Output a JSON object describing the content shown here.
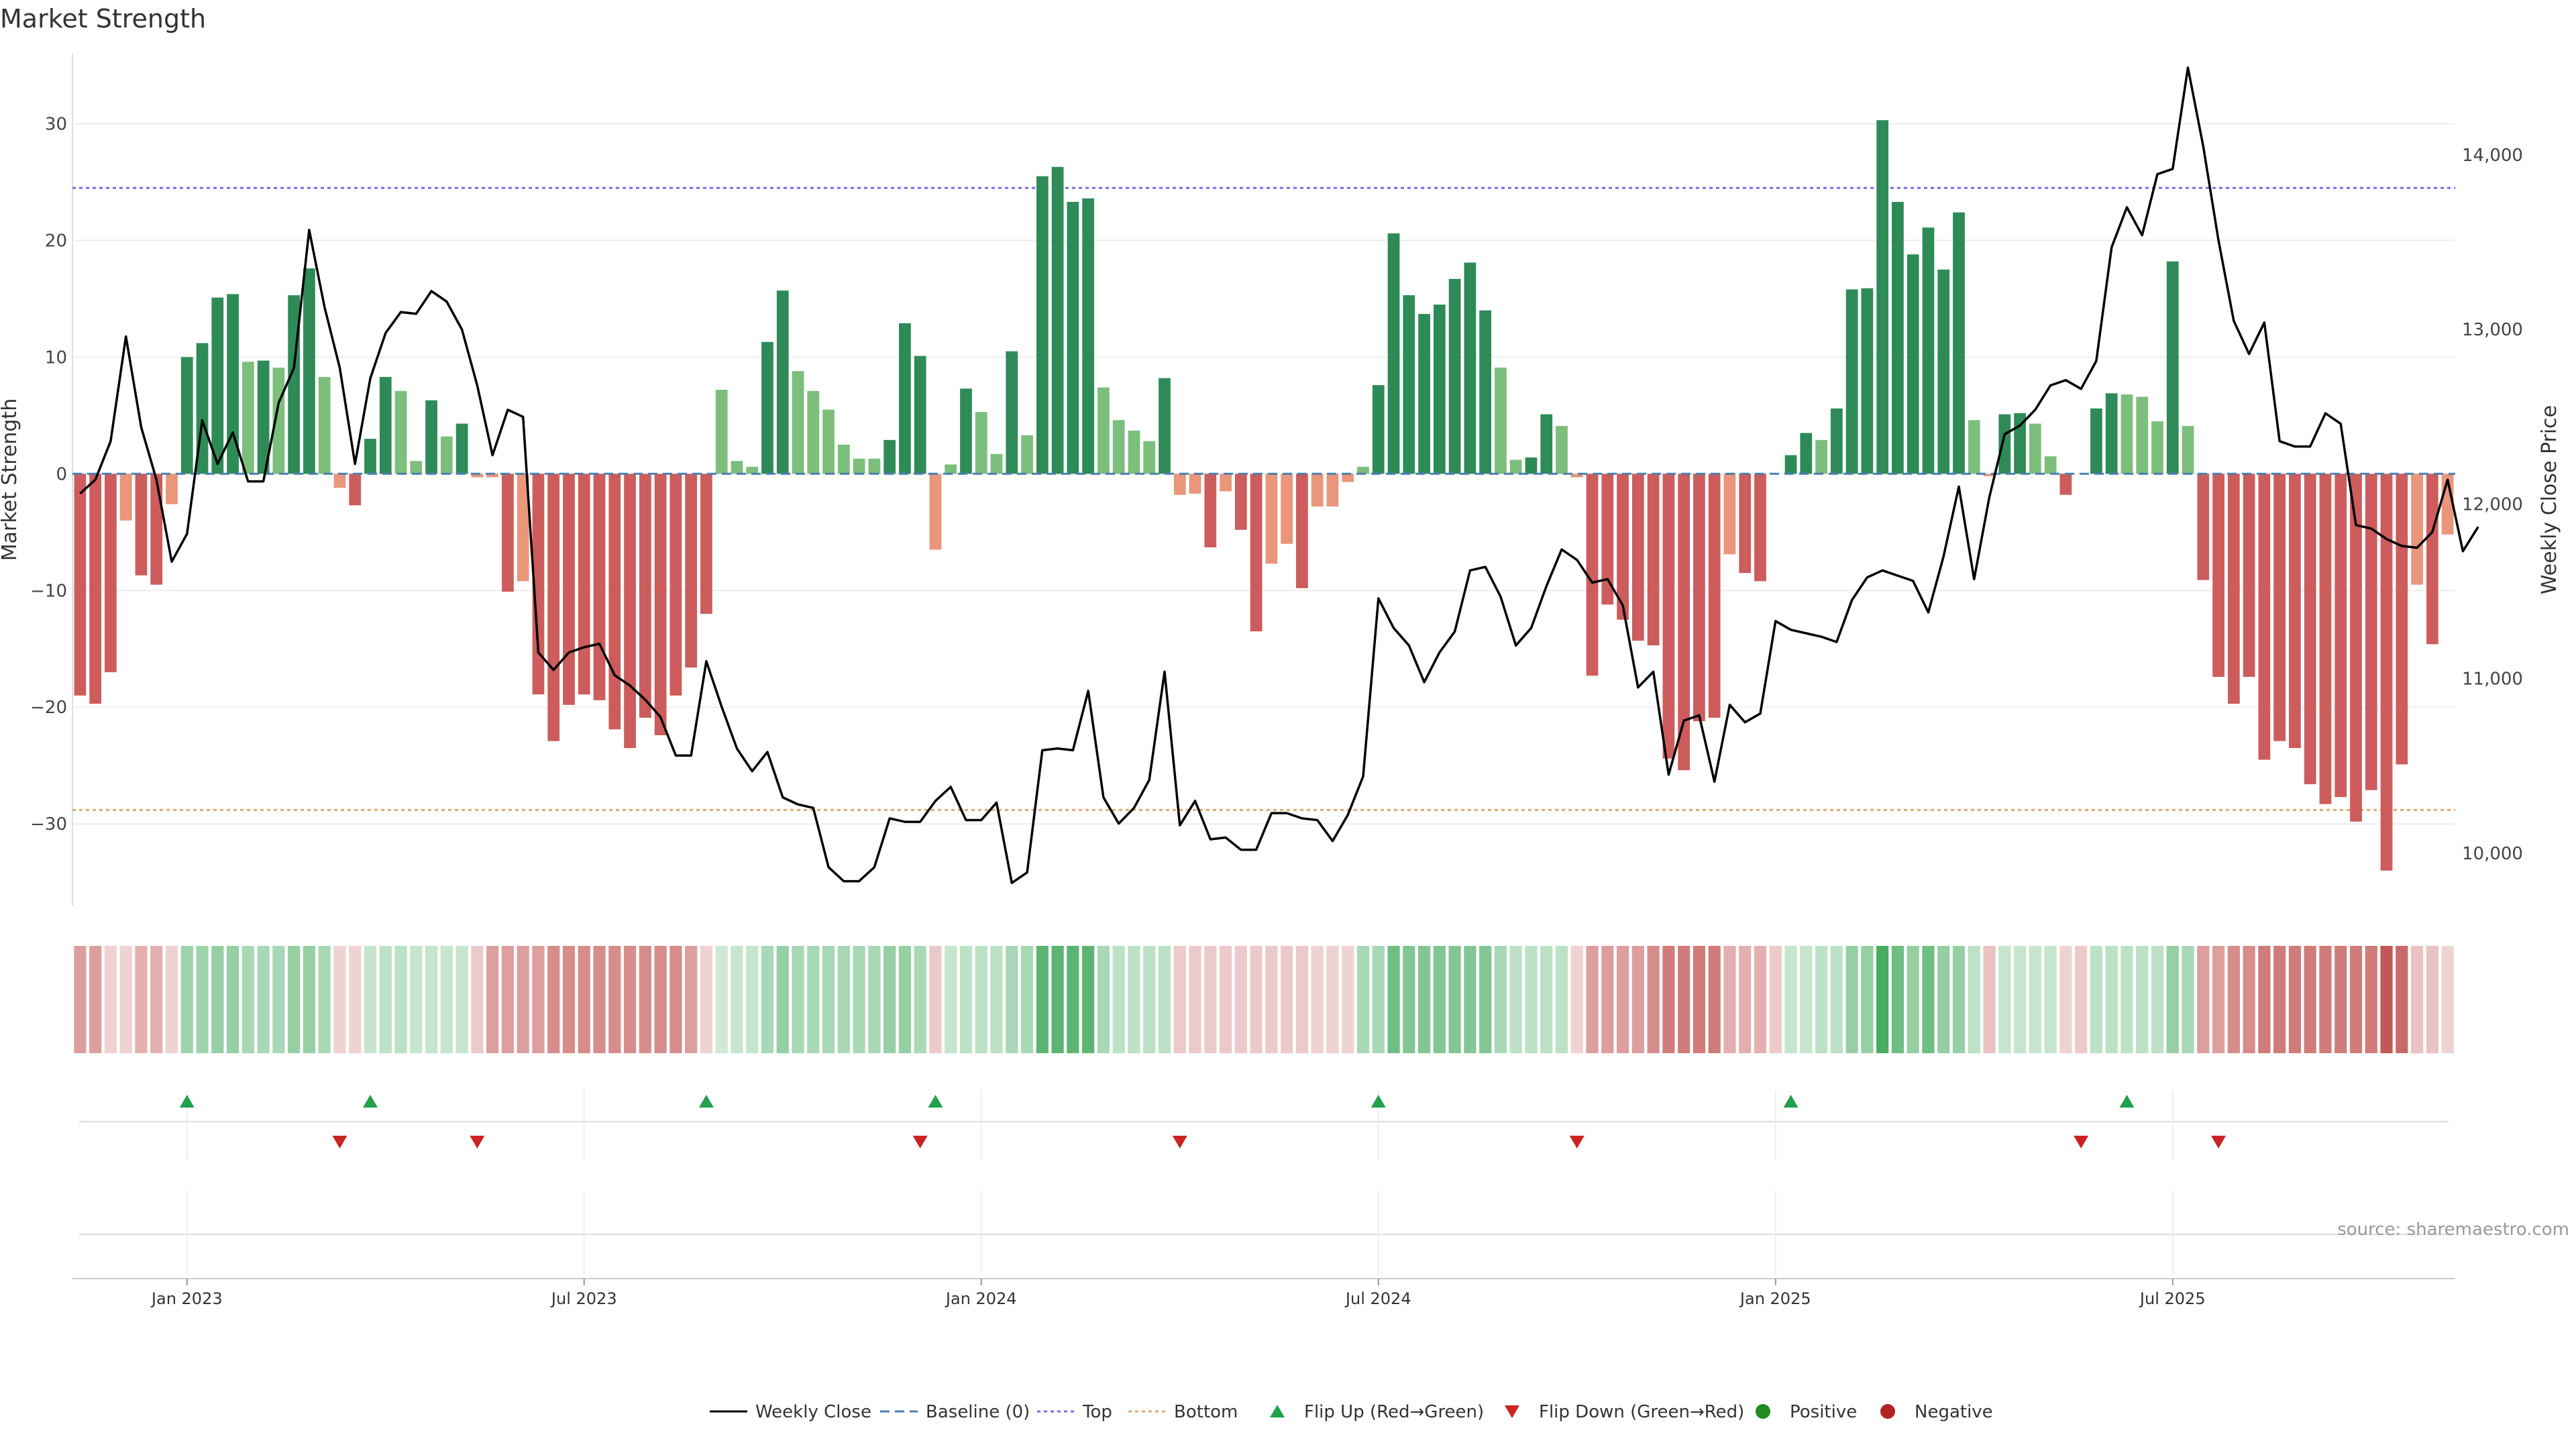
{
  "title": "Market Strength",
  "source": "source: sharemaestro.com",
  "chart_data": {
    "type": "bar",
    "title": "Market Strength",
    "ylabel_left": "Market Strength",
    "ylabel_right": "Weekly Close Price",
    "left_axis": {
      "range": [
        -37,
        36
      ],
      "ticks": [
        30,
        20,
        10,
        0,
        -10,
        -20,
        -30
      ]
    },
    "right_axis": {
      "range": [
        9700,
        14580
      ],
      "ticks": [
        14000,
        13000,
        12000,
        11000,
        10000
      ],
      "tick_labels": [
        "14,000",
        "13,000",
        "12,000",
        "11,000",
        "10,000"
      ]
    },
    "x_ticks": [
      "Jan 2023",
      "Jul 2023",
      "Jan 2024",
      "Jul 2024",
      "Jan 2025",
      "Jul 2025"
    ],
    "x_tick_week_index": [
      7,
      33,
      59,
      85,
      111,
      137
    ],
    "reference_lines": {
      "baseline": 0,
      "top": 24.5,
      "bottom": -28.8
    },
    "strength": [
      -19,
      -19.7,
      -17,
      -4,
      -8.7,
      -9.5,
      -2.6,
      10,
      11.2,
      15.1,
      15.4,
      9.6,
      9.7,
      9.1,
      15.3,
      17.6,
      8.3,
      -1.2,
      -2.7,
      3,
      8.3,
      7.1,
      1.1,
      6.3,
      3.2,
      4.3,
      -0.3,
      -0.3,
      -10.1,
      -9.2,
      -18.9,
      -22.9,
      -19.8,
      -18.9,
      -19.4,
      -21.9,
      -23.5,
      -20.9,
      -22.4,
      -19,
      -16.6,
      -12,
      7.2,
      1.1,
      0.6,
      11.3,
      15.7,
      8.8,
      7.1,
      5.5,
      2.5,
      1.3,
      1.3,
      2.9,
      12.9,
      10.1,
      -6.5,
      0.8,
      7.3,
      5.3,
      1.7,
      10.5,
      3.3,
      25.5,
      26.3,
      23.3,
      23.6,
      7.4,
      4.6,
      3.7,
      2.8,
      8.2,
      -1.8,
      -1.7,
      -6.3,
      -1.5,
      -4.8,
      -13.5,
      -7.7,
      -6,
      -9.8,
      -2.8,
      -2.8,
      -0.7,
      0.6,
      7.6,
      20.6,
      15.3,
      13.7,
      14.5,
      16.7,
      18.1,
      14,
      9.1,
      1.2,
      1.4,
      5.1,
      4.1,
      -0.3,
      -17.3,
      -11.2,
      -12.5,
      -14.3,
      -14.7,
      -24.4,
      -25.4,
      -21.2,
      -20.9,
      -6.9,
      -8.5,
      -9.2,
      0,
      1.6,
      3.5,
      2.9,
      5.6,
      15.8,
      15.9,
      30.3,
      23.3,
      18.8,
      21.1,
      17.5,
      22.4,
      4.6,
      -0.2,
      5.1,
      5.2,
      4.3,
      1.5,
      -1.8,
      0,
      5.6,
      6.9,
      6.8,
      6.6,
      4.5,
      18.2,
      4.1,
      -9.1,
      -17.4,
      -19.7,
      -17.4,
      -24.5,
      -22.9,
      -23.5,
      -26.6,
      -28.3,
      -27.7,
      -29.8,
      -27.1,
      -34,
      -24.9,
      -9.5,
      -14.6,
      -5.2
    ],
    "weekly_close": [
      12060,
      12140,
      12360,
      12960,
      12440,
      12140,
      11670,
      11830,
      12480,
      12230,
      12410,
      12130,
      12130,
      12580,
      12780,
      13570,
      13130,
      12780,
      12230,
      12720,
      12980,
      13100,
      13090,
      13220,
      13160,
      13000,
      12680,
      12280,
      12540,
      12500,
      11150,
      11050,
      11150,
      11180,
      11200,
      11020,
      10960,
      10880,
      10780,
      10560,
      10560,
      11100,
      10840,
      10600,
      10470,
      10580,
      10320,
      10280,
      10260,
      9920,
      9840,
      9840,
      9920,
      10200,
      10180,
      10180,
      10300,
      10380,
      10190,
      10190,
      10290,
      9830,
      9890,
      10590,
      10600,
      10590,
      10930,
      10320,
      10170,
      10260,
      10420,
      11040,
      10160,
      10300,
      10080,
      10090,
      10020,
      10020,
      10230,
      10230,
      10200,
      10190,
      10070,
      10220,
      10440,
      11460,
      11290,
      11190,
      10980,
      11150,
      11270,
      11620,
      11640,
      11470,
      11190,
      11290,
      11530,
      11740,
      11680,
      11550,
      11570,
      11420,
      10950,
      11040,
      10450,
      10760,
      10790,
      10410,
      10850,
      10750,
      10800,
      11330,
      11280,
      11260,
      11240,
      11210,
      11450,
      11580,
      11620,
      11590,
      11560,
      11380,
      11700,
      12100,
      11570,
      12040,
      12400,
      12450,
      12540,
      12680,
      12710,
      12660,
      12820,
      13470,
      13700,
      13540,
      13890,
      13920,
      14500,
      14050,
      13510,
      13050,
      12860,
      13040,
      12360,
      12330,
      12330,
      12520,
      12460,
      11880,
      11860,
      11800,
      11760,
      11750,
      11840,
      12140,
      11730,
      11870
    ],
    "color_strip_opacity": [
      0.55,
      0.55,
      0.25,
      0.25,
      0.45,
      0.45,
      0.25,
      0.5,
      0.5,
      0.55,
      0.55,
      0.45,
      0.45,
      0.45,
      0.55,
      0.55,
      0.45,
      0.25,
      0.25,
      0.3,
      0.35,
      0.35,
      0.3,
      0.3,
      0.3,
      0.3,
      0.3,
      0.55,
      0.55,
      0.55,
      0.55,
      0.65,
      0.65,
      0.65,
      0.65,
      0.65,
      0.65,
      0.65,
      0.65,
      0.65,
      0.55,
      0.25,
      0.25,
      0.3,
      0.3,
      0.45,
      0.55,
      0.45,
      0.45,
      0.45,
      0.45,
      0.45,
      0.45,
      0.55,
      0.55,
      0.45,
      0.3,
      0.3,
      0.35,
      0.35,
      0.35,
      0.45,
      0.45,
      0.85,
      0.85,
      0.85,
      0.85,
      0.45,
      0.35,
      0.35,
      0.35,
      0.35,
      0.3,
      0.3,
      0.3,
      0.3,
      0.3,
      0.3,
      0.3,
      0.3,
      0.3,
      0.25,
      0.25,
      0.25,
      0.45,
      0.45,
      0.75,
      0.65,
      0.65,
      0.65,
      0.65,
      0.65,
      0.65,
      0.45,
      0.35,
      0.35,
      0.35,
      0.35,
      0.25,
      0.55,
      0.55,
      0.55,
      0.55,
      0.65,
      0.75,
      0.75,
      0.75,
      0.75,
      0.45,
      0.45,
      0.45,
      0.3,
      0.3,
      0.3,
      0.35,
      0.35,
      0.55,
      0.55,
      0.95,
      0.75,
      0.55,
      0.75,
      0.55,
      0.55,
      0.35,
      0.35,
      0.3,
      0.3,
      0.3,
      0.3,
      0.25,
      0.3,
      0.35,
      0.35,
      0.35,
      0.35,
      0.35,
      0.55,
      0.45,
      0.55,
      0.55,
      0.65,
      0.65,
      0.75,
      0.75,
      0.75,
      0.75,
      0.75,
      0.75,
      0.75,
      0.75,
      0.95,
      0.85,
      0.35,
      0.35,
      0.25
    ],
    "flip_up_weeks": [
      7,
      19,
      41,
      56,
      85,
      112,
      134
    ],
    "flip_down_weeks": [
      17,
      26,
      55,
      72,
      98,
      131,
      140
    ],
    "legend": [
      "Weekly Close",
      "Baseline (0)",
      "Top",
      "Bottom",
      "Flip Up (Red→Green)",
      "Flip Down (Green→Red)",
      "Positive",
      "Negative"
    ],
    "colors": {
      "green_dark": "#2e8b57",
      "green_light": "#7cbf7c",
      "red_dark": "#cd5c5c",
      "red_light": "#e9967a",
      "strip_green": "#3fa85a",
      "strip_red": "#c0504d",
      "top_line": "#7b68ee",
      "bottom_line": "#e0a870",
      "baseline": "#4a7fb0",
      "flip_up": "#22a04b",
      "flip_down": "#cc2222",
      "positive": "#228b22",
      "negative": "#b22222",
      "close_line": "#000000"
    }
  }
}
